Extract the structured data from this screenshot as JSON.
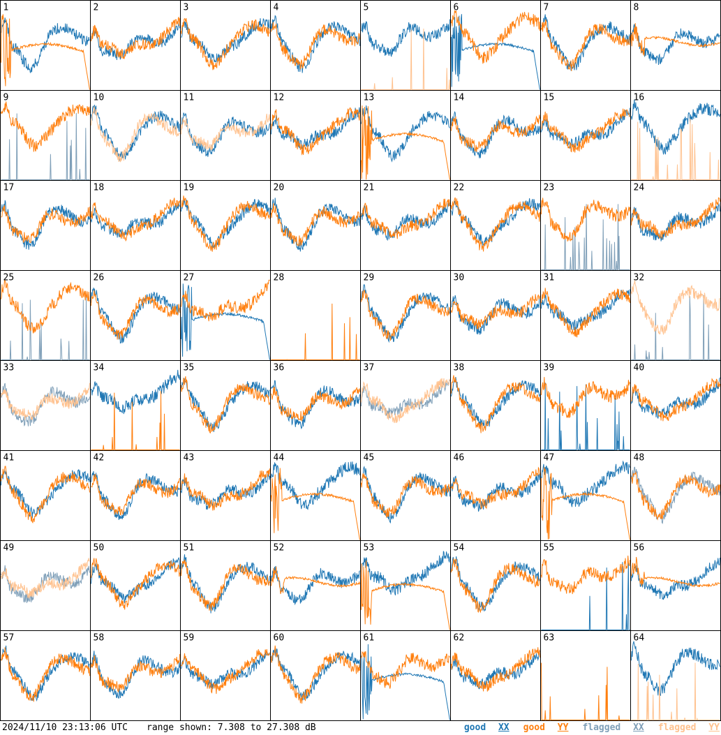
{
  "chart_data": {
    "type": "line",
    "grid": {
      "rows": 8,
      "cols": 8
    },
    "panels": [
      {
        "id": "1",
        "xx": "good",
        "yy": "good",
        "xx_shape": "normal",
        "yy_shape": "bandpass_drop"
      },
      {
        "id": "2",
        "xx": "good",
        "yy": "good",
        "xx_shape": "normal",
        "yy_shape": "normal"
      },
      {
        "id": "3",
        "xx": "good",
        "yy": "good",
        "xx_shape": "normal",
        "yy_shape": "normal"
      },
      {
        "id": "4",
        "xx": "good",
        "yy": "good",
        "xx_shape": "normal",
        "yy_shape": "normal"
      },
      {
        "id": "5",
        "xx": "good",
        "yy": "flagged",
        "xx_shape": "high_noisy",
        "yy_shape": "spikes"
      },
      {
        "id": "6",
        "xx": "good",
        "yy": "good",
        "xx_shape": "bandpass_drop",
        "yy_shape": "high_noisy"
      },
      {
        "id": "7",
        "xx": "good",
        "yy": "good",
        "xx_shape": "normal",
        "yy_shape": "normal"
      },
      {
        "id": "8",
        "xx": "good",
        "yy": "good",
        "xx_shape": "normal",
        "yy_shape": "bandpass_flat"
      },
      {
        "id": "9",
        "xx": "flagged",
        "yy": "good",
        "xx_shape": "spikes",
        "yy_shape": "high_noisy"
      },
      {
        "id": "10",
        "xx": "good",
        "yy": "flagged",
        "xx_shape": "normal",
        "yy_shape": "normal"
      },
      {
        "id": "11",
        "xx": "good",
        "yy": "flagged",
        "xx_shape": "normal",
        "yy_shape": "normal"
      },
      {
        "id": "12",
        "xx": "good",
        "yy": "good",
        "xx_shape": "normal",
        "yy_shape": "normal"
      },
      {
        "id": "13",
        "xx": "good",
        "yy": "good",
        "xx_shape": "normal",
        "yy_shape": "bandpass_drop"
      },
      {
        "id": "14",
        "xx": "good",
        "yy": "good",
        "xx_shape": "normal",
        "yy_shape": "normal"
      },
      {
        "id": "15",
        "xx": "good",
        "yy": "good",
        "xx_shape": "normal",
        "yy_shape": "normal"
      },
      {
        "id": "16",
        "xx": "good",
        "yy": "flagged",
        "xx_shape": "high_noisy",
        "yy_shape": "spikes"
      },
      {
        "id": "17",
        "xx": "good",
        "yy": "good",
        "xx_shape": "normal",
        "yy_shape": "normal"
      },
      {
        "id": "18",
        "xx": "good",
        "yy": "good",
        "xx_shape": "normal",
        "yy_shape": "normal"
      },
      {
        "id": "19",
        "xx": "good",
        "yy": "good",
        "xx_shape": "normal",
        "yy_shape": "normal"
      },
      {
        "id": "20",
        "xx": "good",
        "yy": "good",
        "xx_shape": "normal",
        "yy_shape": "normal"
      },
      {
        "id": "21",
        "xx": "good",
        "yy": "good",
        "xx_shape": "normal",
        "yy_shape": "normal"
      },
      {
        "id": "22",
        "xx": "good",
        "yy": "good",
        "xx_shape": "normal",
        "yy_shape": "normal"
      },
      {
        "id": "23",
        "xx": "flagged",
        "yy": "good",
        "xx_shape": "spikes",
        "yy_shape": "high_noisy"
      },
      {
        "id": "24",
        "xx": "good",
        "yy": "good",
        "xx_shape": "normal",
        "yy_shape": "normal"
      },
      {
        "id": "25",
        "xx": "flagged",
        "yy": "good",
        "xx_shape": "spikes",
        "yy_shape": "high_noisy"
      },
      {
        "id": "26",
        "xx": "good",
        "yy": "good",
        "xx_shape": "normal",
        "yy_shape": "normal"
      },
      {
        "id": "27",
        "xx": "good",
        "yy": "good",
        "xx_shape": "bandpass_drop",
        "yy_shape": "high_noisy"
      },
      {
        "id": "28",
        "xx": "none",
        "yy": "good",
        "xx_shape": "normal",
        "yy_shape": "spikes"
      },
      {
        "id": "29",
        "xx": "good",
        "yy": "good",
        "xx_shape": "normal",
        "yy_shape": "normal"
      },
      {
        "id": "30",
        "xx": "good",
        "yy": "good",
        "xx_shape": "normal",
        "yy_shape": "normal"
      },
      {
        "id": "31",
        "xx": "good",
        "yy": "good",
        "xx_shape": "normal",
        "yy_shape": "normal"
      },
      {
        "id": "32",
        "xx": "flagged",
        "yy": "flagged",
        "xx_shape": "spikes",
        "yy_shape": "high_noisy"
      },
      {
        "id": "33",
        "xx": "flagged",
        "yy": "flagged",
        "xx_shape": "normal",
        "yy_shape": "normal"
      },
      {
        "id": "34",
        "xx": "good",
        "yy": "good",
        "xx_shape": "high_noisy",
        "yy_shape": "spikes"
      },
      {
        "id": "35",
        "xx": "good",
        "yy": "good",
        "xx_shape": "normal",
        "yy_shape": "normal"
      },
      {
        "id": "36",
        "xx": "good",
        "yy": "good",
        "xx_shape": "normal",
        "yy_shape": "normal"
      },
      {
        "id": "37",
        "xx": "flagged",
        "yy": "flagged",
        "xx_shape": "normal",
        "yy_shape": "normal"
      },
      {
        "id": "38",
        "xx": "good",
        "yy": "good",
        "xx_shape": "normal",
        "yy_shape": "normal"
      },
      {
        "id": "39",
        "xx": "good",
        "yy": "good",
        "xx_shape": "spikes",
        "yy_shape": "high_noisy"
      },
      {
        "id": "40",
        "xx": "good",
        "yy": "good",
        "xx_shape": "normal",
        "yy_shape": "normal"
      },
      {
        "id": "41",
        "xx": "good",
        "yy": "good",
        "xx_shape": "normal",
        "yy_shape": "normal"
      },
      {
        "id": "42",
        "xx": "good",
        "yy": "good",
        "xx_shape": "normal",
        "yy_shape": "normal"
      },
      {
        "id": "43",
        "xx": "good",
        "yy": "good",
        "xx_shape": "normal",
        "yy_shape": "normal"
      },
      {
        "id": "44",
        "xx": "good",
        "yy": "good",
        "xx_shape": "high_noisy",
        "yy_shape": "bandpass_drop"
      },
      {
        "id": "45",
        "xx": "good",
        "yy": "good",
        "xx_shape": "normal",
        "yy_shape": "normal"
      },
      {
        "id": "46",
        "xx": "good",
        "yy": "good",
        "xx_shape": "normal",
        "yy_shape": "normal"
      },
      {
        "id": "47",
        "xx": "good",
        "yy": "good",
        "xx_shape": "high_noisy",
        "yy_shape": "bandpass_drop"
      },
      {
        "id": "48",
        "xx": "flagged",
        "yy": "good",
        "xx_shape": "normal",
        "yy_shape": "normal"
      },
      {
        "id": "49",
        "xx": "flagged",
        "yy": "flagged",
        "xx_shape": "normal",
        "yy_shape": "normal"
      },
      {
        "id": "50",
        "xx": "good",
        "yy": "good",
        "xx_shape": "normal",
        "yy_shape": "normal"
      },
      {
        "id": "51",
        "xx": "good",
        "yy": "good",
        "xx_shape": "normal",
        "yy_shape": "normal"
      },
      {
        "id": "52",
        "xx": "good",
        "yy": "good",
        "xx_shape": "normal",
        "yy_shape": "bandpass_flat"
      },
      {
        "id": "53",
        "xx": "good",
        "yy": "good",
        "xx_shape": "high_noisy",
        "yy_shape": "bandpass_drop"
      },
      {
        "id": "54",
        "xx": "good",
        "yy": "good",
        "xx_shape": "normal",
        "yy_shape": "normal"
      },
      {
        "id": "55",
        "xx": "good",
        "yy": "good",
        "xx_shape": "spikes",
        "yy_shape": "high_noisy"
      },
      {
        "id": "56",
        "xx": "good",
        "yy": "good",
        "xx_shape": "normal",
        "yy_shape": "bandpass_flat"
      },
      {
        "id": "57",
        "xx": "good",
        "yy": "good",
        "xx_shape": "normal",
        "yy_shape": "normal"
      },
      {
        "id": "58",
        "xx": "good",
        "yy": "good",
        "xx_shape": "normal",
        "yy_shape": "normal"
      },
      {
        "id": "59",
        "xx": "good",
        "yy": "good",
        "xx_shape": "normal",
        "yy_shape": "normal"
      },
      {
        "id": "60",
        "xx": "good",
        "yy": "good",
        "xx_shape": "normal",
        "yy_shape": "normal"
      },
      {
        "id": "61",
        "xx": "good",
        "yy": "good",
        "xx_shape": "bandpass_drop",
        "yy_shape": "high_noisy"
      },
      {
        "id": "62",
        "xx": "good",
        "yy": "good",
        "xx_shape": "normal",
        "yy_shape": "normal"
      },
      {
        "id": "63",
        "xx": "none",
        "yy": "good",
        "xx_shape": "normal",
        "yy_shape": "spikes"
      },
      {
        "id": "64",
        "xx": "good",
        "yy": "flagged",
        "xx_shape": "high_noisy",
        "yy_shape": "spikes"
      }
    ],
    "legend": [
      {
        "label": "good XX",
        "color": "#1f77b4"
      },
      {
        "label": "good YY",
        "color": "#ff7f0e"
      },
      {
        "label": "flagged XX",
        "color": "#7f9fb8"
      },
      {
        "label": "flagged YY",
        "color": "#ffc28f"
      }
    ],
    "range": {
      "min": 7.308,
      "max": 27.308,
      "unit": "dB"
    }
  },
  "footer": {
    "timestamp": "2024/11/10 23:13:06 UTC",
    "range_text": "range shown: 7.308 to 27.308 dB"
  }
}
